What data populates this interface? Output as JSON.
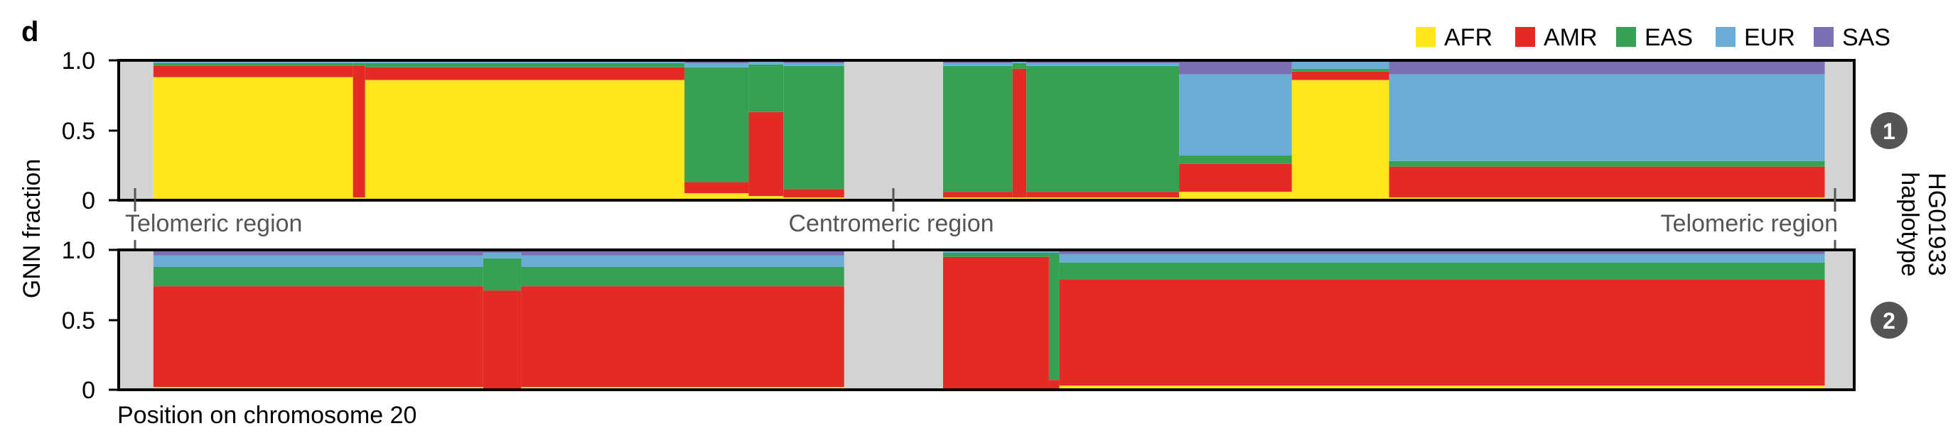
{
  "panel_label": "d",
  "colors": {
    "AFR": "#FFE719",
    "AMR": "#E32A24",
    "EAS": "#37A153",
    "EUR": "#6AAED6",
    "SAS": "#7C70B3",
    "masked": "#D3D3D3"
  },
  "chart_data": {
    "type": "area",
    "stacked": true,
    "title": "",
    "xlabel": "Position on chromosome 20",
    "ylabel": "GNN fraction",
    "ylim": [
      0,
      1
    ],
    "yticks": [
      "0",
      "0.5",
      "1.0"
    ],
    "legend": {
      "placement": "top-right",
      "entries": [
        "AFR",
        "AMR",
        "EAS",
        "EUR",
        "SAS"
      ]
    },
    "region_labels": [
      "Telomeric region",
      "Centromeric region",
      "Telomeric region"
    ],
    "right_label": [
      "HG01933",
      "haplotype"
    ],
    "x_domain": [
      0,
      1
    ],
    "masked_regions": [
      [
        0,
        0.02
      ],
      [
        0.418,
        0.475
      ],
      [
        0.983,
        1.0
      ]
    ],
    "panels": [
      {
        "haplotype": "1",
        "segments": [
          {
            "x": [
              0.02,
              0.135
            ],
            "AFR": 0.88,
            "AMR": 0.08,
            "EAS": 0.02,
            "EUR": 0.01,
            "SAS": 0.01
          },
          {
            "x": [
              0.135,
              0.142
            ],
            "AFR": 0.02,
            "AMR": 0.94,
            "EAS": 0.02,
            "EUR": 0.01,
            "SAS": 0.01
          },
          {
            "x": [
              0.142,
              0.326
            ],
            "AFR": 0.86,
            "AMR": 0.09,
            "EAS": 0.03,
            "EUR": 0.01,
            "SAS": 0.01
          },
          {
            "x": [
              0.326,
              0.363
            ],
            "AFR": 0.05,
            "AMR": 0.08,
            "EAS": 0.82,
            "EUR": 0.03,
            "SAS": 0.02
          },
          {
            "x": [
              0.363,
              0.383
            ],
            "AFR": 0.03,
            "AMR": 0.6,
            "EAS": 0.34,
            "EUR": 0.02,
            "SAS": 0.01
          },
          {
            "x": [
              0.383,
              0.418
            ],
            "AFR": 0.02,
            "AMR": 0.06,
            "EAS": 0.88,
            "EUR": 0.02,
            "SAS": 0.02
          },
          {
            "x": [
              0.475,
              0.515
            ],
            "AFR": 0.02,
            "AMR": 0.04,
            "EAS": 0.9,
            "EUR": 0.02,
            "SAS": 0.02
          },
          {
            "x": [
              0.515,
              0.523
            ],
            "AFR": 0.02,
            "AMR": 0.92,
            "EAS": 0.04,
            "EUR": 0.01,
            "SAS": 0.01
          },
          {
            "x": [
              0.523,
              0.611
            ],
            "AFR": 0.02,
            "AMR": 0.04,
            "EAS": 0.9,
            "EUR": 0.02,
            "SAS": 0.02
          },
          {
            "x": [
              0.611,
              0.676
            ],
            "AFR": 0.06,
            "AMR": 0.2,
            "EAS": 0.06,
            "EUR": 0.58,
            "SAS": 0.1
          },
          {
            "x": [
              0.676,
              0.732
            ],
            "AFR": 0.86,
            "AMR": 0.06,
            "EAS": 0.02,
            "EUR": 0.05,
            "SAS": 0.01
          },
          {
            "x": [
              0.732,
              0.983
            ],
            "AFR": 0.02,
            "AMR": 0.22,
            "EAS": 0.04,
            "EUR": 0.62,
            "SAS": 0.1
          }
        ]
      },
      {
        "haplotype": "2",
        "segments": [
          {
            "x": [
              0.02,
              0.21
            ],
            "AFR": 0.02,
            "AMR": 0.72,
            "EAS": 0.14,
            "EUR": 0.08,
            "SAS": 0.04
          },
          {
            "x": [
              0.21,
              0.232
            ],
            "AFR": 0.01,
            "AMR": 0.7,
            "EAS": 0.23,
            "EUR": 0.04,
            "SAS": 0.02
          },
          {
            "x": [
              0.232,
              0.418
            ],
            "AFR": 0.02,
            "AMR": 0.72,
            "EAS": 0.14,
            "EUR": 0.08,
            "SAS": 0.04
          },
          {
            "x": [
              0.475,
              0.536
            ],
            "AFR": 0.01,
            "AMR": 0.94,
            "EAS": 0.03,
            "EUR": 0.01,
            "SAS": 0.01
          },
          {
            "x": [
              0.536,
              0.542
            ],
            "AFR": 0.01,
            "AMR": 0.06,
            "EAS": 0.91,
            "EUR": 0.01,
            "SAS": 0.01
          },
          {
            "x": [
              0.542,
              0.983
            ],
            "AFR": 0.03,
            "AMR": 0.76,
            "EAS": 0.12,
            "EUR": 0.06,
            "SAS": 0.03
          }
        ]
      }
    ]
  }
}
